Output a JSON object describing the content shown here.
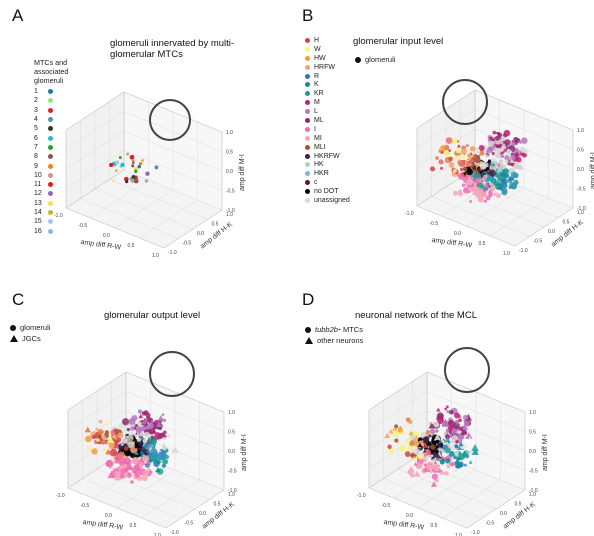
{
  "axis_labels": {
    "x": "amp diff R-W",
    "y": "amp diff H-K",
    "z": "amp diff M-I"
  },
  "ticks": {
    "x": [
      "-1.0",
      "-0.5",
      "0.0",
      "0.5",
      "1.0"
    ],
    "y": [
      "-1.0",
      "-0.5",
      "0.0",
      "0.5",
      "1.0"
    ],
    "z": [
      "-1.0",
      "-0.5",
      "0.0",
      "0.5",
      "1.0"
    ]
  },
  "panels": [
    {
      "letter": "A",
      "title": "glomeruli innervated by multi-\nglomerular MTCs"
    },
    {
      "letter": "B",
      "title": "glomerular input  level"
    },
    {
      "letter": "C",
      "title": "glomerular output level"
    },
    {
      "letter": "D",
      "title": "neuronal network of the MCL"
    }
  ],
  "panel_a_legend": {
    "header": "MTCs and\nassociated\nglomeruli",
    "items": [
      {
        "label": "1",
        "color": "#1f77b4"
      },
      {
        "label": "2",
        "color": "#98df8a"
      },
      {
        "label": "3",
        "color": "#d62728"
      },
      {
        "label": "4",
        "color": "#5a8fa8"
      },
      {
        "label": "5",
        "color": "#333333"
      },
      {
        "label": "6",
        "color": "#17becf"
      },
      {
        "label": "7",
        "color": "#2ca02c"
      },
      {
        "label": "8",
        "color": "#8c564b"
      },
      {
        "label": "9",
        "color": "#ff7f0e"
      },
      {
        "label": "10",
        "color": "#c49c94"
      },
      {
        "label": "11",
        "color": "#e41a1c"
      },
      {
        "label": "12",
        "color": "#9467bd"
      },
      {
        "label": "13",
        "color": "#f7e04b"
      },
      {
        "label": "14",
        "color": "#bcbd22"
      },
      {
        "label": "15",
        "color": "#aec7e8"
      },
      {
        "label": "16",
        "color": "#8fb8d8"
      }
    ]
  },
  "panel_b_legend": {
    "marker": "glomeruli",
    "items": [
      {
        "label": "H",
        "color": "#d6404e"
      },
      {
        "label": "W",
        "color": "#f6f47a"
      },
      {
        "label": "HW",
        "color": "#f39c3c"
      },
      {
        "label": "HRFW",
        "color": "#f5a36e"
      },
      {
        "label": "R",
        "color": "#1f7bb4"
      },
      {
        "label": "K",
        "color": "#0d8f8f"
      },
      {
        "label": "KR",
        "color": "#1a9c8e"
      },
      {
        "label": "M",
        "color": "#c0206e"
      },
      {
        "label": "L",
        "color": "#b37ac0"
      },
      {
        "label": "ML",
        "color": "#8d2a6e"
      },
      {
        "label": "I",
        "color": "#f06bb0"
      },
      {
        "label": "MI",
        "color": "#f4a6b8"
      },
      {
        "label": "MLI",
        "color": "#a0522d"
      },
      {
        "label": "HKRFW",
        "color": "#3a1f4f"
      },
      {
        "label": "HK",
        "color": "#a7d8c2"
      },
      {
        "label": "HKR",
        "color": "#7fb6d8"
      },
      {
        "label": "c",
        "color": "#5a1a1a"
      },
      {
        "label": "no DOT",
        "color": "#000000"
      },
      {
        "label": "unassigned",
        "color": "#d9d9d9"
      }
    ]
  },
  "panel_c_legend": {
    "circle": "glomeruli",
    "triangle": "JGCs"
  },
  "panel_d_legend": {
    "circle_gene": "tubb2b",
    "circle_sup": "+",
    "circle_rest": " MTCs",
    "triangle": "other neurons"
  },
  "chart_data": [
    {
      "type": "scatter",
      "panel": "A",
      "title": "glomeruli innervated by multi-glomerular MTCs",
      "xlabel": "amp diff R-W",
      "ylabel": "amp diff H-K",
      "zlabel": "amp diff M-I",
      "xlim": [
        -1,
        1
      ],
      "ylim": [
        -1,
        1
      ],
      "zlim": [
        -1,
        1
      ]
    },
    {
      "type": "scatter",
      "panel": "B",
      "title": "glomerular input  level",
      "xlabel": "amp diff R-W",
      "ylabel": "amp diff H-K",
      "zlabel": "amp diff M-I",
      "xlim": [
        -1,
        1
      ],
      "ylim": [
        -1,
        1
      ],
      "zlim": [
        -1,
        1
      ]
    },
    {
      "type": "scatter",
      "panel": "C",
      "title": "glomerular output level",
      "xlabel": "amp diff R-W",
      "ylabel": "amp diff H-K",
      "zlabel": "amp diff M-I",
      "xlim": [
        -1,
        1
      ],
      "ylim": [
        -1,
        1
      ],
      "zlim": [
        -1,
        1
      ]
    },
    {
      "type": "scatter",
      "panel": "D",
      "title": "neuronal network of the MCL",
      "xlabel": "amp diff R-W",
      "ylabel": "amp diff H-K",
      "zlabel": "amp diff M-I",
      "xlim": [
        -1,
        1
      ],
      "ylim": [
        -1,
        1
      ],
      "zlim": [
        -1,
        1
      ]
    }
  ]
}
